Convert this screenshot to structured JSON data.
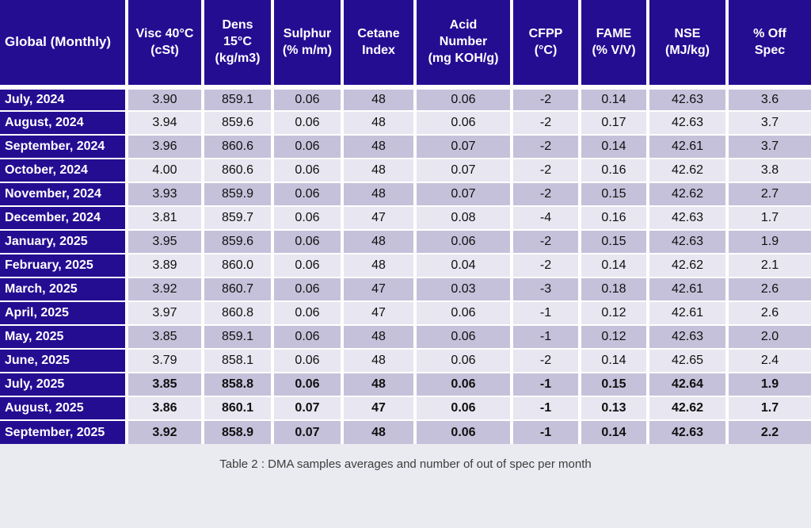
{
  "chart_data": {
    "type": "table",
    "title": "Table 2 : DMA samples averages and number of out of spec per month",
    "columns": [
      "Global (Monthly)",
      "Visc 40°C\n(cSt)",
      "Dens\n15°C\n(kg/m3)",
      "Sulphur\n(% m/m)",
      "Cetane\nIndex",
      "Acid\nNumber\n(mg KOH/g)",
      "CFPP\n(°C)",
      "FAME\n(% V/V)",
      "NSE\n(MJ/kg)",
      "% Off\nSpec"
    ],
    "rows": [
      {
        "month": "July, 2024",
        "values": [
          "3.90",
          "859.1",
          "0.06",
          "48",
          "0.06",
          "-2",
          "0.14",
          "42.63",
          "3.6"
        ],
        "bold": false
      },
      {
        "month": "August, 2024",
        "values": [
          "3.94",
          "859.6",
          "0.06",
          "48",
          "0.06",
          "-2",
          "0.17",
          "42.63",
          "3.7"
        ],
        "bold": false
      },
      {
        "month": "September, 2024",
        "values": [
          "3.96",
          "860.6",
          "0.06",
          "48",
          "0.07",
          "-2",
          "0.14",
          "42.61",
          "3.7"
        ],
        "bold": false
      },
      {
        "month": "October, 2024",
        "values": [
          "4.00",
          "860.6",
          "0.06",
          "48",
          "0.07",
          "-2",
          "0.16",
          "42.62",
          "3.8"
        ],
        "bold": false
      },
      {
        "month": "November, 2024",
        "values": [
          "3.93",
          "859.9",
          "0.06",
          "48",
          "0.07",
          "-2",
          "0.15",
          "42.62",
          "2.7"
        ],
        "bold": false
      },
      {
        "month": "December, 2024",
        "values": [
          "3.81",
          "859.7",
          "0.06",
          "47",
          "0.08",
          "-4",
          "0.16",
          "42.63",
          "1.7"
        ],
        "bold": false
      },
      {
        "month": "January, 2025",
        "values": [
          "3.95",
          "859.6",
          "0.06",
          "48",
          "0.06",
          "-2",
          "0.15",
          "42.63",
          "1.9"
        ],
        "bold": false
      },
      {
        "month": "February, 2025",
        "values": [
          "3.89",
          "860.0",
          "0.06",
          "48",
          "0.04",
          "-2",
          "0.14",
          "42.62",
          "2.1"
        ],
        "bold": false
      },
      {
        "month": "March, 2025",
        "values": [
          "3.92",
          "860.7",
          "0.06",
          "47",
          "0.03",
          "-3",
          "0.18",
          "42.61",
          "2.6"
        ],
        "bold": false
      },
      {
        "month": "April, 2025",
        "values": [
          "3.97",
          "860.8",
          "0.06",
          "47",
          "0.06",
          "-1",
          "0.12",
          "42.61",
          "2.6"
        ],
        "bold": false
      },
      {
        "month": "May, 2025",
        "values": [
          "3.85",
          "859.1",
          "0.06",
          "48",
          "0.06",
          "-1",
          "0.12",
          "42.63",
          "2.0"
        ],
        "bold": false
      },
      {
        "month": "June, 2025",
        "values": [
          "3.79",
          "858.1",
          "0.06",
          "48",
          "0.06",
          "-2",
          "0.14",
          "42.65",
          "2.4"
        ],
        "bold": false
      },
      {
        "month": "July, 2025",
        "values": [
          "3.85",
          "858.8",
          "0.06",
          "48",
          "0.06",
          "-1",
          "0.15",
          "42.64",
          "1.9"
        ],
        "bold": true
      },
      {
        "month": "August, 2025",
        "values": [
          "3.86",
          "860.1",
          "0.07",
          "47",
          "0.06",
          "-1",
          "0.13",
          "42.62",
          "1.7"
        ],
        "bold": true
      },
      {
        "month": "September, 2025",
        "values": [
          "3.92",
          "858.9",
          "0.07",
          "48",
          "0.06",
          "-1",
          "0.14",
          "42.63",
          "2.2"
        ],
        "bold": true
      }
    ]
  },
  "caption": "Table 2 : DMA samples averages and number of out of spec per month",
  "theme": {
    "header_bg": "#250d92",
    "row_odd_bg": "#c6c1da",
    "row_even_bg": "#e8e6f0",
    "page_bg": "#e9ebf0",
    "grid": "#ffffff",
    "header_text": "#ffffff",
    "body_text": "#101010",
    "caption_text": "#3d3d3d"
  }
}
